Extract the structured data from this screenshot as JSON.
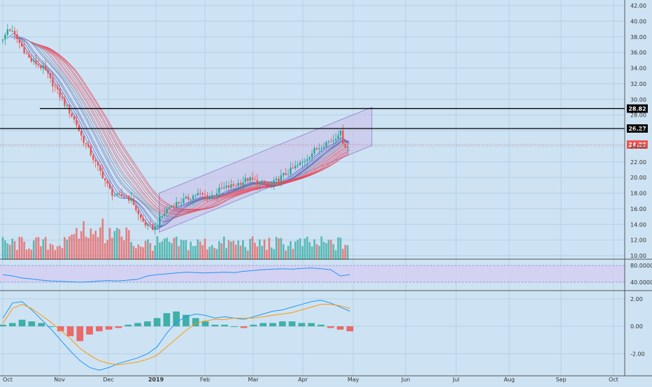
{
  "colors": {
    "background": "#cde3f3",
    "grid": "#b4cfe4",
    "up": "#26a69a",
    "down": "#ef5350",
    "channel_fill": "#c9bfe8",
    "rsi_band": "#d5cdf3",
    "macd_line": "#2196f3",
    "signal_line": "#ff9800",
    "level_line": "#000000",
    "last_price_tag": "#ef5350"
  },
  "chart_data": [
    {
      "type": "candlestick",
      "pane": "price",
      "title": "",
      "x_axis_labels": [
        "Oct",
        "Nov",
        "Dec",
        "2019",
        "Feb",
        "Mar",
        "Apr",
        "May",
        "Jun",
        "Jul",
        "Aug",
        "Sep",
        "Oct"
      ],
      "y_ticks": [
        "10.00",
        "12.00",
        "14.00",
        "16.00",
        "18.00",
        "20.00",
        "22.00",
        "24.00",
        "26.00",
        "28.00",
        "30.00",
        "32.00",
        "34.00",
        "36.00",
        "38.00",
        "40.00",
        "42.00"
      ],
      "ylim": [
        10,
        42
      ],
      "price_path": [
        [
          "Oct 1",
          37.5
        ],
        [
          "Oct 4",
          39.2
        ],
        [
          "Oct 8",
          38.0
        ],
        [
          "Oct 12",
          36.5
        ],
        [
          "Oct 16",
          35.0
        ],
        [
          "Oct 20",
          34.5
        ],
        [
          "Oct 24",
          33.8
        ],
        [
          "Oct 27",
          32.5
        ],
        [
          "Oct 31",
          31.0
        ],
        [
          "Nov 3",
          29.8
        ],
        [
          "Nov 7",
          28.5
        ],
        [
          "Nov 11",
          27.0
        ],
        [
          "Nov 15",
          25.0
        ],
        [
          "Nov 19",
          23.5
        ],
        [
          "Nov 24",
          21.5
        ],
        [
          "Nov 28",
          20.0
        ],
        [
          "Dec 3",
          18.0
        ],
        [
          "Dec 7",
          17.5
        ],
        [
          "Dec 12",
          17.8
        ],
        [
          "Dec 17",
          16.8
        ],
        [
          "Dec 21",
          15.0
        ],
        [
          "Dec 26",
          13.8
        ],
        [
          "Dec 31",
          13.5
        ],
        [
          "Jan 4",
          14.8
        ],
        [
          "Jan 9",
          16.2
        ],
        [
          "Jan 14",
          16.7
        ],
        [
          "Jan 20",
          17.2
        ],
        [
          "Jan 27",
          17.9
        ],
        [
          "Feb 4",
          17.5
        ],
        [
          "Feb 10",
          18.5
        ],
        [
          "Feb 18",
          19.0
        ],
        [
          "Feb 26",
          19.8
        ],
        [
          "Mar 4",
          19.4
        ],
        [
          "Mar 12",
          19.0
        ],
        [
          "Mar 18",
          20.0
        ],
        [
          "Mar 25",
          21.0
        ],
        [
          "Apr 1",
          22.0
        ],
        [
          "Apr 8",
          23.5
        ],
        [
          "Apr 15",
          24.5
        ],
        [
          "Apr 19",
          24.8
        ],
        [
          "Apr 23",
          26.0
        ],
        [
          "Apr 25",
          24.5
        ],
        [
          "Apr 27",
          23.8
        ],
        [
          "Apr 29",
          24.2
        ]
      ],
      "horizontal_levels": [
        {
          "label": "28.82",
          "value": 28.82
        },
        {
          "label": "26.27",
          "value": 26.27
        }
      ],
      "last_price": {
        "label": "24.22",
        "value": 24.22
      },
      "channel": {
        "lower_start": [
          "Jan 3",
          13.0
        ],
        "upper_start": [
          "Jan 3",
          18.0
        ],
        "lower_end": [
          "May 12",
          24.1
        ],
        "upper_end": [
          "May 12",
          29.0
        ]
      },
      "volume_bars": "shown at bottom of price pane, colored by candle direction"
    },
    {
      "type": "line",
      "pane": "rsi",
      "title": "",
      "y_ticks": [
        "80.0000",
        "40.0000"
      ],
      "band": [
        40,
        80
      ],
      "series": [
        {
          "values": [
            58,
            55,
            50,
            48,
            45,
            43,
            42,
            41,
            40,
            41,
            43,
            44,
            43,
            45,
            47,
            55,
            58,
            60,
            62,
            64,
            63,
            62,
            63,
            64,
            63,
            66,
            68,
            70,
            71,
            72,
            71,
            73,
            74,
            72,
            70,
            55,
            58
          ]
        }
      ]
    },
    {
      "type": "bar",
      "pane": "macd",
      "title": "",
      "y_ticks": [
        "2.00",
        "0.00",
        "-2.00"
      ],
      "ylim": [
        -3.2,
        2.4
      ],
      "series": [
        {
          "values": [
            0.6,
            1.7,
            1.8,
            1.2,
            0.5,
            -0.2,
            -1.0,
            -1.8,
            -2.5,
            -3.0,
            -3.2,
            -3.0,
            -2.7,
            -2.5,
            -2.3,
            -2.0,
            -1.5,
            -0.5,
            0.3,
            0.7,
            0.9,
            0.8,
            0.6,
            0.7,
            0.6,
            0.5,
            0.7,
            0.9,
            1.1,
            1.2,
            1.4,
            1.6,
            1.8,
            1.9,
            1.7,
            1.4,
            1.1
          ]
        },
        {
          "values": [
            0.2,
            1.3,
            1.6,
            1.3,
            0.8,
            0.3,
            -0.3,
            -0.9,
            -1.6,
            -2.1,
            -2.5,
            -2.7,
            -2.8,
            -2.7,
            -2.6,
            -2.4,
            -2.1,
            -1.5,
            -0.9,
            -0.3,
            0.2,
            0.4,
            0.5,
            0.5,
            0.6,
            0.6,
            0.6,
            0.7,
            0.8,
            0.9,
            1.0,
            1.2,
            1.4,
            1.6,
            1.6,
            1.5,
            1.3
          ]
        }
      ],
      "histogram": [
        0.1,
        0.2,
        0.4,
        0.3,
        0.2,
        0.0,
        -0.3,
        -0.6,
        -0.9,
        -0.5,
        -0.3,
        -0.2,
        -0.1,
        0.1,
        0.2,
        0.3,
        0.5,
        0.8,
        0.9,
        0.7,
        0.5,
        0.3,
        0.1,
        0.1,
        0.0,
        -0.1,
        0.1,
        0.2,
        0.2,
        0.3,
        0.3,
        0.2,
        0.2,
        0.1,
        -0.1,
        -0.2,
        -0.3
      ]
    }
  ]
}
